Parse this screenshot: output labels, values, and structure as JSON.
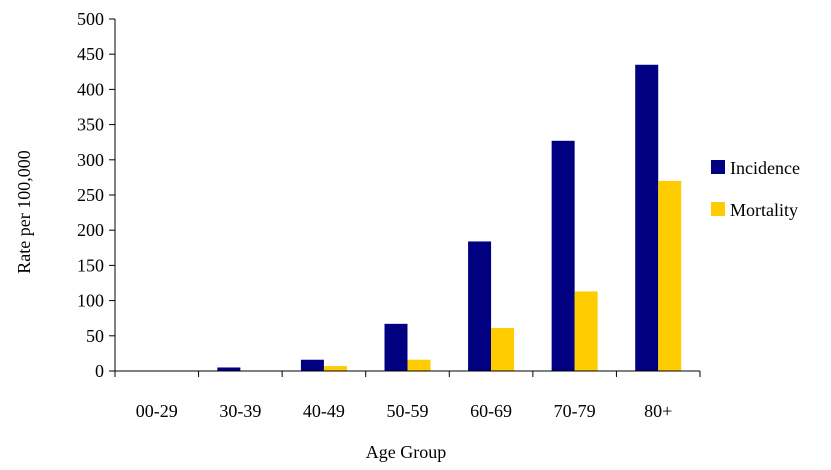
{
  "chart_data": {
    "type": "bar",
    "title": "",
    "xlabel": "Age Group",
    "ylabel": "Rate per 100,000",
    "categories": [
      "00-29",
      "30-39",
      "40-49",
      "50-59",
      "60-69",
      "70-79",
      "80+"
    ],
    "series": [
      {
        "name": "Incidence",
        "color": "#000080",
        "values": [
          0,
          5,
          16,
          67,
          184,
          327,
          435
        ]
      },
      {
        "name": "Mortality",
        "color": "#FFCC00",
        "values": [
          0,
          0,
          7,
          16,
          61,
          113,
          270
        ]
      }
    ],
    "ylim": [
      0,
      500
    ],
    "yticks": [
      0,
      50,
      100,
      150,
      200,
      250,
      300,
      350,
      400,
      450,
      500
    ],
    "grid": false,
    "legend_position": "right"
  }
}
